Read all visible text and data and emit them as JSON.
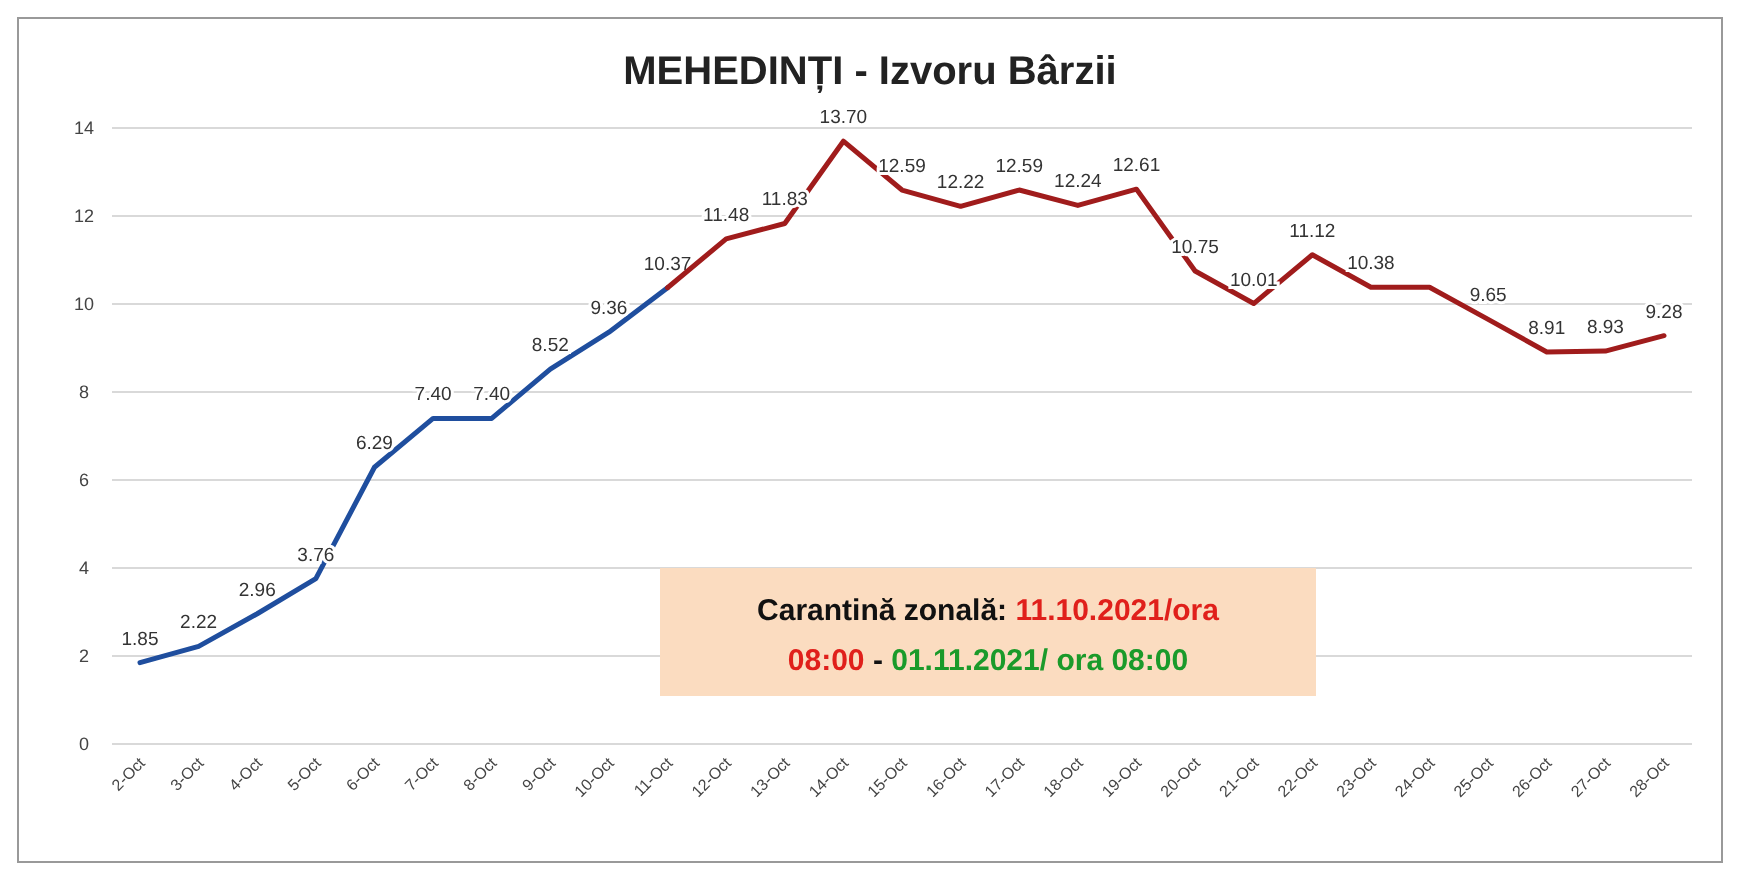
{
  "chart_data": {
    "type": "line",
    "title": "MEHEDINȚI - Izvoru Bârzii",
    "categories": [
      "2-Oct",
      "3-Oct",
      "4-Oct",
      "5-Oct",
      "6-Oct",
      "7-Oct",
      "8-Oct",
      "9-Oct",
      "10-Oct",
      "11-Oct",
      "12-Oct",
      "13-Oct",
      "14-Oct",
      "15-Oct",
      "16-Oct",
      "17-Oct",
      "18-Oct",
      "19-Oct",
      "20-Oct",
      "21-Oct",
      "22-Oct",
      "23-Oct",
      "24-Oct",
      "25-Oct",
      "26-Oct",
      "27-Oct",
      "28-Oct"
    ],
    "series": [
      {
        "color": "#1f4e9e",
        "values": [
          1.85,
          2.22,
          2.96,
          3.76,
          6.29,
          7.4,
          7.4,
          8.52,
          9.36,
          10.37,
          null,
          null,
          null,
          null,
          null,
          null,
          null,
          null,
          null,
          null,
          null,
          null,
          null,
          null,
          null,
          null,
          null
        ],
        "value_labels": [
          "1.85",
          "2.22",
          "2.96",
          "3.76",
          "6.29",
          "7.40",
          "7.40",
          "8.52",
          "9.36",
          "10.37",
          null,
          null,
          null,
          null,
          null,
          null,
          null,
          null,
          null,
          null,
          null,
          null,
          null,
          null,
          null,
          null,
          null
        ]
      },
      {
        "color": "#a01c1c",
        "values": [
          null,
          null,
          null,
          null,
          null,
          null,
          null,
          null,
          null,
          10.37,
          11.48,
          11.83,
          13.7,
          12.59,
          12.22,
          12.59,
          12.24,
          12.61,
          10.75,
          10.01,
          11.12,
          10.38,
          10.38,
          9.65,
          8.91,
          8.93,
          9.28
        ],
        "value_labels": [
          null,
          null,
          null,
          null,
          null,
          null,
          null,
          null,
          null,
          null,
          "11.48",
          "11.83",
          "13.70",
          "12.59",
          "12.22",
          "12.59",
          "12.24",
          "12.61",
          "10.75",
          "10.01",
          "11.12",
          "10.38",
          null,
          "9.65",
          "8.91",
          "8.93",
          "9.28"
        ]
      }
    ],
    "ylim": [
      0,
      14
    ],
    "yticks": [
      0,
      2,
      4,
      6,
      8,
      10,
      12,
      14
    ],
    "grid": "y",
    "marker": "none",
    "line_style": "solid",
    "annotations": [
      "Carantină zonală:",
      "11.10.2021/ora 08:00",
      "-",
      "01.11.2021/ ora 08:00"
    ]
  }
}
